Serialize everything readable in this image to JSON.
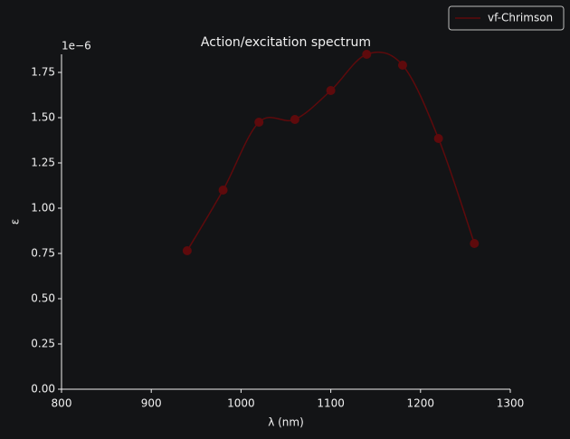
{
  "chart_data": {
    "type": "line",
    "title": "Action/excitation spectrum",
    "x_label": "λ (nm)",
    "y_label": "ε",
    "y_offset_label": "1e−6",
    "x": [
      940,
      980,
      1020,
      1060,
      1100,
      1140,
      1180,
      1220,
      1260
    ],
    "series": [
      {
        "name": "vf-Chrimson",
        "color": "#5e0a0c",
        "values": [
          0.765,
          1.1,
          1.475,
          1.49,
          1.65,
          1.85,
          1.79,
          1.385,
          0.805
        ]
      }
    ],
    "xlim": [
      800,
      1300
    ],
    "xticks": [
      800,
      900,
      1000,
      1100,
      1200,
      1300
    ],
    "ylim": [
      0,
      1.85
    ],
    "yticks": [
      {
        "value": 0,
        "label": "0.00"
      },
      0.25,
      {
        "value": 0.5,
        "label": "0.50"
      },
      0.75,
      {
        "value": 1,
        "label": "1.00"
      },
      1.25,
      {
        "value": 1.5,
        "label": "1.50"
      },
      1.75
    ],
    "legend": "upper right",
    "smooth": true
  }
}
